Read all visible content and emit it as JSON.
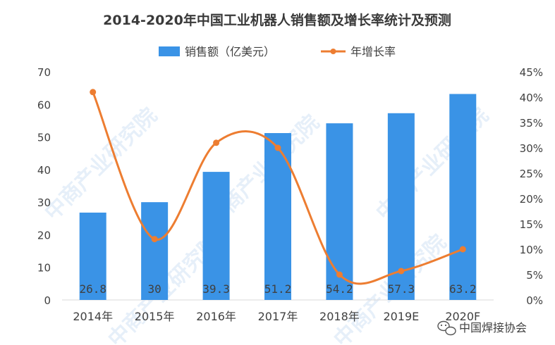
{
  "chart_data": {
    "type": "bar",
    "title": "2014-2020年中国工业机器人销售额及增长率统计及预测",
    "categories": [
      "2014年",
      "2015年",
      "2016年",
      "2017年",
      "2018年",
      "2019E",
      "2020F"
    ],
    "series": [
      {
        "name": "销售额（亿美元）",
        "type": "bar",
        "axis": "left",
        "values": [
          26.8,
          30,
          39.3,
          51.2,
          54.2,
          57.3,
          63.2
        ],
        "labels": [
          "26.8",
          "30",
          "39.3",
          "51.2",
          "54.2",
          "57.3",
          "63.2"
        ]
      },
      {
        "name": "年增长率",
        "type": "line",
        "smooth": true,
        "axis": "right",
        "values": [
          0.41,
          0.12,
          0.31,
          0.3,
          0.05,
          0.057,
          0.1
        ]
      }
    ],
    "y_left": {
      "ylim": [
        0,
        70
      ],
      "ticks": [
        0,
        10,
        20,
        30,
        40,
        50,
        60,
        70
      ],
      "tick_labels": [
        "0",
        "10",
        "20",
        "30",
        "40",
        "50",
        "60",
        "70"
      ]
    },
    "y_right": {
      "ylim": [
        0,
        0.45
      ],
      "ticks": [
        0,
        0.05,
        0.1,
        0.15,
        0.2,
        0.25,
        0.3,
        0.35,
        0.4,
        0.45
      ],
      "tick_labels": [
        "0%",
        "5%",
        "10%",
        "15%",
        "20%",
        "25%",
        "30%",
        "35%",
        "40%",
        "45%"
      ]
    },
    "legend_position": "top-center",
    "grid": false,
    "colors": {
      "bar": "#3A93E6",
      "line": "#ED7D31",
      "text": "#404040",
      "axis": "#D9D9D9"
    }
  },
  "watermark": "中商产业研究院",
  "source_badge": {
    "icon": "wechat-icon",
    "text": "中国焊接协会"
  }
}
